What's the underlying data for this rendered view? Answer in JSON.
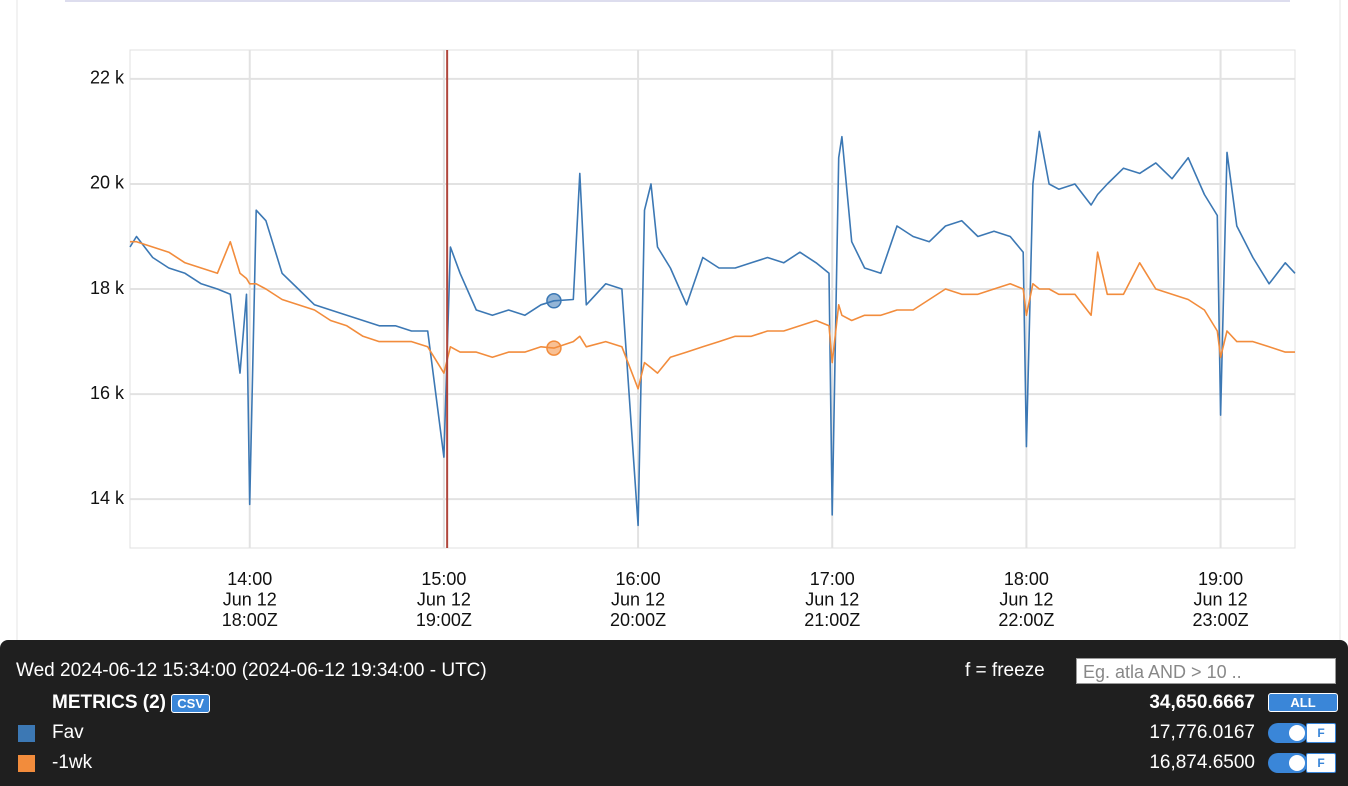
{
  "chart_data": {
    "type": "line",
    "x": [
      "13:23",
      "13:25",
      "13:30",
      "13:35",
      "13:40",
      "13:45",
      "13:50",
      "13:54",
      "13:57",
      "13:59",
      "14:00",
      "14:02",
      "14:05",
      "14:10",
      "14:15",
      "14:20",
      "14:25",
      "14:30",
      "14:35",
      "14:40",
      "14:45",
      "14:50",
      "14:55",
      "15:00",
      "15:02",
      "15:05",
      "15:10",
      "15:15",
      "15:20",
      "15:25",
      "15:30",
      "15:34",
      "15:40",
      "15:42",
      "15:44",
      "15:50",
      "15:55",
      "16:00",
      "16:02",
      "16:04",
      "16:06",
      "16:10",
      "16:15",
      "16:20",
      "16:25",
      "16:30",
      "16:35",
      "16:40",
      "16:45",
      "16:50",
      "16:55",
      "16:59",
      "17:00",
      "17:02",
      "17:03",
      "17:06",
      "17:10",
      "17:15",
      "17:20",
      "17:25",
      "17:30",
      "17:35",
      "17:40",
      "17:45",
      "17:50",
      "17:55",
      "17:59",
      "18:00",
      "18:02",
      "18:04",
      "18:07",
      "18:10",
      "18:15",
      "18:20",
      "18:22",
      "18:25",
      "18:30",
      "18:35",
      "18:40",
      "18:45",
      "18:50",
      "18:55",
      "18:59",
      "19:00",
      "19:02",
      "19:05",
      "19:10",
      "19:15",
      "19:20",
      "19:23"
    ],
    "series": [
      {
        "name": "Fav",
        "color": "#3c78b4",
        "values": [
          18800,
          19000,
          18600,
          18400,
          18300,
          18100,
          18000,
          17900,
          16400,
          17900,
          13900,
          19500,
          19300,
          18300,
          18000,
          17700,
          17600,
          17500,
          17400,
          17300,
          17300,
          17200,
          17200,
          14800,
          18800,
          18300,
          17600,
          17500,
          17600,
          17500,
          17700,
          17776.0167,
          17800,
          20200,
          17700,
          18100,
          18000,
          13500,
          19500,
          20000,
          18800,
          18400,
          17700,
          18600,
          18400,
          18400,
          18500,
          18600,
          18500,
          18700,
          18500,
          18300,
          13700,
          20500,
          20900,
          18900,
          18400,
          18300,
          19200,
          19000,
          18900,
          19200,
          19300,
          19000,
          19100,
          19000,
          18700,
          15000,
          20000,
          21000,
          20000,
          19900,
          20000,
          19600,
          19800,
          20000,
          20300,
          20200,
          20400,
          20100,
          20500,
          19800,
          19400,
          15600,
          20600,
          19200,
          18600,
          18100,
          18500,
          18300
        ]
      },
      {
        "name": "-1wk",
        "color": "#f28c3c",
        "values": [
          18900,
          18900,
          18800,
          18700,
          18500,
          18400,
          18300,
          18900,
          18300,
          18200,
          18100,
          18100,
          18000,
          17800,
          17700,
          17600,
          17400,
          17300,
          17100,
          17000,
          17000,
          17000,
          16900,
          16400,
          16900,
          16800,
          16800,
          16700,
          16800,
          16800,
          16900,
          16874.65,
          17000,
          17100,
          16900,
          17000,
          16900,
          16100,
          16600,
          16500,
          16400,
          16700,
          16800,
          16900,
          17000,
          17100,
          17100,
          17200,
          17200,
          17300,
          17400,
          17300,
          16600,
          17700,
          17500,
          17400,
          17500,
          17500,
          17600,
          17600,
          17800,
          18000,
          17900,
          17900,
          18000,
          18100,
          18000,
          17500,
          18100,
          18000,
          18000,
          17900,
          17900,
          17500,
          18700,
          17900,
          17900,
          18500,
          18000,
          17900,
          17800,
          17600,
          17200,
          16700,
          17200,
          17000,
          17000,
          16900,
          16800,
          16800
        ]
      }
    ],
    "xlim": [
      "13:23",
      "19:23"
    ],
    "xticks": [
      {
        "value": "14:00",
        "label": [
          "14:00",
          "Jun 12",
          "18:00Z"
        ]
      },
      {
        "value": "15:00",
        "label": [
          "15:00",
          "Jun 12",
          "19:00Z"
        ]
      },
      {
        "value": "16:00",
        "label": [
          "16:00",
          "Jun 12",
          "20:00Z"
        ]
      },
      {
        "value": "17:00",
        "label": [
          "17:00",
          "Jun 12",
          "21:00Z"
        ]
      },
      {
        "value": "18:00",
        "label": [
          "18:00",
          "Jun 12",
          "22:00Z"
        ]
      },
      {
        "value": "19:00",
        "label": [
          "19:00",
          "Jun 12",
          "23:00Z"
        ]
      }
    ],
    "ylim": [
      13070,
      22550
    ],
    "yticks": [
      {
        "value": 14000,
        "label": "14 k"
      },
      {
        "value": 16000,
        "label": "16 k"
      },
      {
        "value": 18000,
        "label": "18 k"
      },
      {
        "value": 20000,
        "label": "20 k"
      },
      {
        "value": 22000,
        "label": "22 k"
      }
    ],
    "grid": true,
    "vline": {
      "x": "15:01",
      "color": "#b0463c"
    },
    "hover_x": "15:34"
  },
  "panel": {
    "timestamp": "Wed 2024-06-12 15:34:00 (2024-06-12 19:34:00 - UTC)",
    "freeze": "f = freeze",
    "search_placeholder": "Eg. atla AND > 10 ..",
    "metrics": "METRICS (2)",
    "csv": "CSV",
    "total": "34,650.6667",
    "all": "ALL",
    "values": [
      "17,776.0167",
      "16,874.6500"
    ],
    "toggle": "F"
  }
}
